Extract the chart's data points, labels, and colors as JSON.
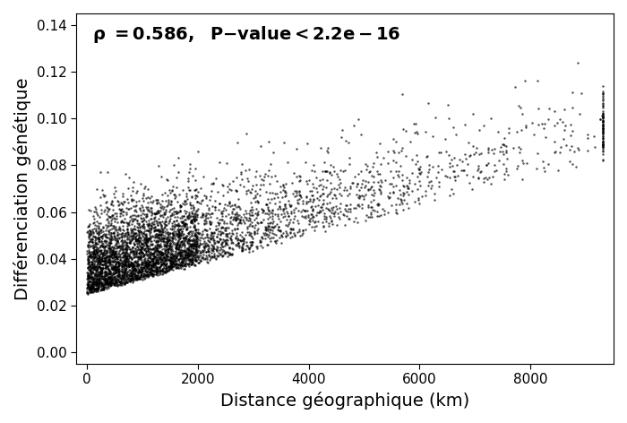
{
  "title": "",
  "xlabel": "Distance géographique (km)",
  "ylabel": "Différenciation génétique",
  "annotation": "ρ = 0.586, ρ-value < 2.2e−16",
  "annotation_rho": "ρ = 0.586,",
  "annotation_pval": "P-value < 2.2e−16",
  "xlim": [
    -200,
    9500
  ],
  "ylim": [
    -0.005,
    0.145
  ],
  "xticks": [
    0,
    2000,
    4000,
    6000,
    8000
  ],
  "yticks": [
    0.0,
    0.02,
    0.04,
    0.06,
    0.08,
    0.1,
    0.12,
    0.14
  ],
  "point_color": "black",
  "point_size": 3,
  "point_alpha": 0.7,
  "n_points": 5000,
  "seed": 42,
  "background_color": "white",
  "xlabel_fontsize": 14,
  "ylabel_fontsize": 14,
  "tick_fontsize": 11,
  "annotation_fontsize": 14
}
